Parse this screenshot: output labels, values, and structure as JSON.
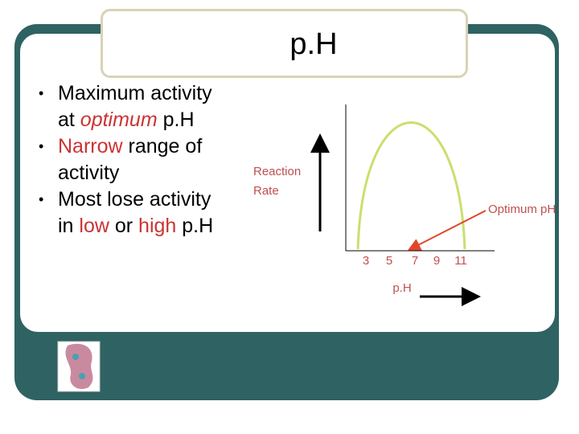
{
  "title": "p.H",
  "bullets": [
    [
      {
        "text": "Maximum activity at "
      },
      {
        "text": "optimum",
        "color": "#cc3333",
        "italic": true
      },
      {
        "text": " p.H"
      }
    ],
    [
      {
        "text": "Narrow",
        "color": "#cc3333"
      },
      {
        "text": " range of activity"
      }
    ],
    [
      {
        "text": "Most lose activity in "
      },
      {
        "text": "low",
        "color": "#cc3333"
      },
      {
        "text": " or "
      },
      {
        "text": "high",
        "color": "#cc3333"
      },
      {
        "text": " p.H"
      }
    ]
  ],
  "figure": {
    "y_label_lines": [
      "Reaction",
      "Rate"
    ],
    "x_ticks": [
      "3",
      "5",
      "7",
      "9",
      "11"
    ],
    "x_label": "p.H",
    "annotation": "Optimum pH"
  }
}
